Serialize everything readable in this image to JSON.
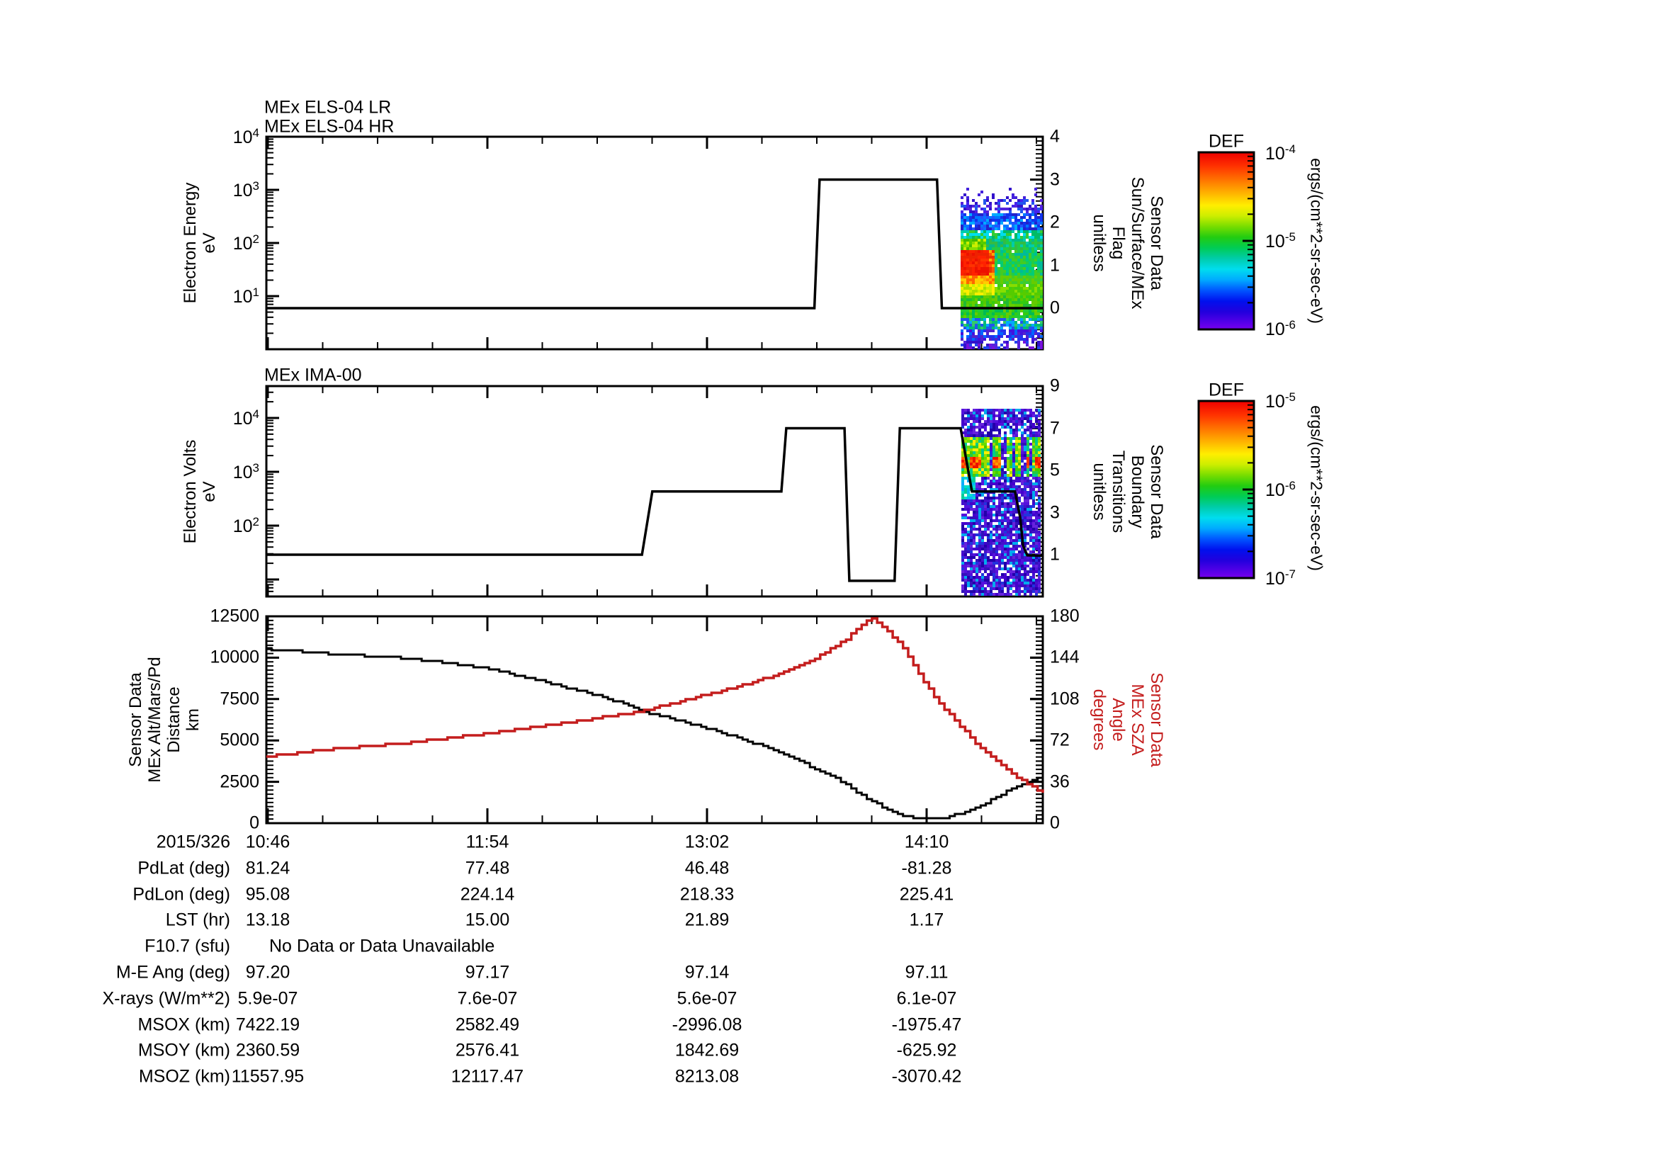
{
  "page": {
    "background": "#ffffff"
  },
  "colors": {
    "axis": "#000000",
    "distance_line": "#000000",
    "sza_line": "#c41d1d"
  },
  "chart_data": [
    {
      "type": "heatmap",
      "titles": [
        "MEx ELS-04 LR",
        "MEx ELS-04 HR"
      ],
      "y_axis": {
        "label_lines": [
          "Electron Energy",
          "eV"
        ],
        "scale": "log",
        "range": [
          1,
          10000
        ],
        "tick_exponents": [
          1,
          2,
          3,
          4
        ]
      },
      "right_axis": {
        "label_lines": [
          "Sensor Data",
          "Sun/Surface/MEx",
          "Flag",
          "unitless"
        ],
        "range": [
          0,
          4
        ],
        "ticks": [
          0,
          1,
          2,
          3,
          4
        ]
      },
      "flag_series": [
        [
          0,
          0
        ],
        [
          169.4,
          0
        ],
        [
          171,
          3
        ],
        [
          207.3,
          3
        ],
        [
          208.8,
          0
        ],
        [
          240,
          0
        ]
      ],
      "spectrogram": {
        "t_start_min": 214.5,
        "t_end_min": 240,
        "seed": 11,
        "x0": 1356,
        "x1": 1472,
        "y0": 265,
        "y1": 491,
        "regions": [
          {
            "y": [
              265,
              279
            ],
            "p": 0.15,
            "colors": [
              "#3311cc",
              "#4422dd"
            ]
          },
          {
            "y": [
              279,
              301
            ],
            "p": 0.5,
            "colors": [
              "#3311cc",
              "#4422ee",
              "#2255ee",
              "#5522dd"
            ]
          },
          {
            "y": [
              301,
              323
            ],
            "p": 0.92,
            "colors": [
              "#1133ee",
              "#2255ff",
              "#0077ff",
              "#2222cc",
              "#00aaff"
            ]
          },
          {
            "y": [
              323,
              334
            ],
            "p": 0.95,
            "colors": [
              "#00ccaa",
              "#00bb66",
              "#33cc33",
              "#00ddee"
            ]
          },
          {
            "y": [
              334,
              337
            ],
            "p": 1.0,
            "colors": [
              "#ffffff",
              "#ffffcc",
              "#eeeeee",
              "#ffffff"
            ]
          },
          {
            "y": [
              337,
              353
            ],
            "xs": [
              [
                1356,
                1392
              ]
            ],
            "p": 1.0,
            "colors": [
              "#55cc00",
              "#88dd00",
              "#ccee00",
              "#44bb00"
            ]
          },
          {
            "y": [
              337,
              353
            ],
            "p": 0.96,
            "colors": [
              "#33bb44",
              "#00bb88",
              "#22cc44",
              "#00ccaa"
            ]
          },
          {
            "y": [
              353,
              387
            ],
            "xs": [
              [
                1356,
                1396
              ]
            ],
            "p": 1.0,
            "colors": [
              "#ee1100",
              "#ff2200",
              "#ee2200",
              "#ff3300"
            ]
          },
          {
            "y": [
              353,
              387
            ],
            "xs": [
              [
                1396,
                1404
              ]
            ],
            "p": 1.0,
            "colors": [
              "#ff5500",
              "#ee3300",
              "#ffaa00"
            ]
          },
          {
            "y": [
              353,
              387
            ],
            "p": 0.97,
            "colors": [
              "#22cc44",
              "#00cc77",
              "#44cc22",
              "#00bb99"
            ]
          },
          {
            "y": [
              387,
              401
            ],
            "xs": [
              [
                1356,
                1404
              ]
            ],
            "p": 1.0,
            "colors": [
              "#ff6600",
              "#ffaa00",
              "#ff8800",
              "#ffcc00"
            ]
          },
          {
            "y": [
              387,
              401
            ],
            "p": 0.97,
            "colors": [
              "#44cc22",
              "#66cc00",
              "#33cc44"
            ]
          },
          {
            "y": [
              401,
              415
            ],
            "xs": [
              [
                1356,
                1404
              ]
            ],
            "p": 1.0,
            "colors": [
              "#ffee00",
              "#ccee00",
              "#aadd00"
            ]
          },
          {
            "y": [
              401,
              415
            ],
            "p": 0.97,
            "colors": [
              "#55cc00",
              "#88dd00",
              "#44cc11"
            ]
          },
          {
            "y": [
              415,
              434
            ],
            "p": 0.97,
            "colors": [
              "#33cc11",
              "#55cc00",
              "#22bb33",
              "#66cc00"
            ]
          },
          {
            "y": [
              436,
              449
            ],
            "p": 0.96,
            "colors": [
              "#33cc11",
              "#00bb55",
              "#66cc00",
              "#22cc33"
            ]
          },
          {
            "y": [
              449,
              463
            ],
            "p": 0.88,
            "colors": [
              "#00bb77",
              "#00aaff",
              "#2255ee",
              "#33cc66"
            ]
          },
          {
            "y": [
              463,
              479
            ],
            "p": 0.72,
            "colors": [
              "#2233ee",
              "#4411dd",
              "#0066ff",
              "#5522cc"
            ]
          },
          {
            "y": [
              479,
              491
            ],
            "p": 0.5,
            "colors": [
              "#3311cc",
              "#5522dd",
              "#2244ee",
              "#7711dd"
            ]
          }
        ]
      }
    },
    {
      "type": "heatmap",
      "titles": [
        "MEx IMA-00"
      ],
      "y_axis": {
        "label_lines": [
          "Electron Volts",
          "eV"
        ],
        "scale": "log",
        "range": [
          5,
          30000
        ],
        "tick_exponents": [
          2,
          3,
          4
        ]
      },
      "right_axis": {
        "label_lines": [
          "Sensor Data",
          "Boundary",
          "Transitions",
          "unitless"
        ],
        "range": [
          0,
          9
        ],
        "ticks": [
          1,
          3,
          5,
          7,
          9
        ]
      },
      "boundary_series": [
        [
          0,
          1
        ],
        [
          116.1,
          1
        ],
        [
          119.3,
          4
        ],
        [
          159.2,
          4
        ],
        [
          160.7,
          7
        ],
        [
          178.7,
          7
        ],
        [
          180.2,
          -0.24
        ],
        [
          194.2,
          -0.24
        ],
        [
          195.8,
          7
        ],
        [
          214.6,
          7
        ],
        [
          218.1,
          4
        ],
        [
          231.4,
          4
        ],
        [
          233.0,
          2.78
        ],
        [
          233.9,
          1.44
        ],
        [
          235.2,
          0.97
        ],
        [
          240,
          0.95
        ]
      ],
      "spectrogram": {
        "t_start_min": 214.6,
        "t_end_min": 239,
        "seed": 29,
        "x0": 1357,
        "x1": 1468,
        "y0": 577,
        "y1": 841,
        "regions": [
          {
            "y": [
              642,
              659
            ],
            "xs": [
              [
                1357,
                1364
              ],
              [
                1369,
                1384
              ],
              [
                1400,
                1411
              ],
              [
                1446,
                1452
              ],
              [
                1459,
                1466
              ]
            ],
            "p": 1.0,
            "colors": [
              "#ff3300",
              "#ee1100",
              "#ff6600",
              "#ff9900"
            ]
          },
          {
            "y": [
              616,
              670
            ],
            "xs": [
              [
                1357,
                1368
              ],
              [
                1369,
                1384
              ],
              [
                1385,
                1394
              ],
              [
                1400,
                1411
              ],
              [
                1419,
                1427
              ],
              [
                1432,
                1441
              ],
              [
                1446,
                1452
              ],
              [
                1457,
                1468
              ]
            ],
            "p": 0.97,
            "colors": [
              "#44cc00",
              "#99dd00",
              "#ffee00",
              "#22cc44",
              "#00cc88",
              "#66dd00"
            ]
          },
          {
            "y": [
              668,
              702
            ],
            "xs": [
              [
                1357,
                1374
              ]
            ],
            "p": 0.85,
            "colors": [
              "#00bbee",
              "#00ddcc",
              "#11aaff",
              "#00cc99"
            ]
          },
          {
            "y": [
              577,
              841
            ],
            "p": 0.85,
            "colors": [
              "#4400cc",
              "#5511dd",
              "#3311bb",
              "#2200aa",
              "#6622dd",
              "#2233dd",
              "#4411cc",
              "#00aaee"
            ]
          }
        ]
      }
    },
    {
      "type": "line",
      "left_axis": {
        "label_lines": [
          "Sensor Data",
          "MEx Alt/Mars/Pd",
          "Distance",
          "km"
        ],
        "range": [
          0,
          12500
        ],
        "ticks": [
          0,
          2500,
          5000,
          7500,
          10000,
          12500
        ]
      },
      "right_axis": {
        "label_lines": [
          "Sensor Data",
          "MEx SZA",
          "Angle",
          "degrees"
        ],
        "range": [
          0,
          180
        ],
        "ticks": [
          0,
          36,
          72,
          108,
          144,
          180
        ],
        "color": "#c41d1d"
      },
      "x_axis": {
        "date_label": "2015/326",
        "major_labels": [
          "10:46",
          "11:54",
          "13:02",
          "14:10"
        ],
        "major_minutes": [
          0,
          68,
          136,
          204
        ],
        "total_minutes": 240
      },
      "series": [
        {
          "name": "MEx Alt/Mars/Pd Distance (km)",
          "color": "#000000",
          "points": [
            [
              0,
              10530
            ],
            [
              22.8,
              10200
            ],
            [
              40.3,
              10000
            ],
            [
              51.2,
              9800
            ],
            [
              67.9,
              9370
            ],
            [
              81.9,
              8730
            ],
            [
              103.8,
              7660
            ],
            [
              116.9,
              6720
            ],
            [
              136.2,
              5740
            ],
            [
              149.8,
              4900
            ],
            [
              162.9,
              3900
            ],
            [
              176,
              2700
            ],
            [
              187,
              1300
            ],
            [
              195.7,
              500
            ],
            [
              202.3,
              250
            ],
            [
              208.9,
              320
            ],
            [
              215.5,
              620
            ],
            [
              219.8,
              985
            ],
            [
              230.8,
              2140
            ],
            [
              240,
              2870
            ]
          ]
        },
        {
          "name": "MEx SZA Angle (degrees)",
          "color": "#c41d1d",
          "points": [
            [
              0,
              58
            ],
            [
              21.9,
              65
            ],
            [
              40.3,
              69
            ],
            [
              67.9,
              78
            ],
            [
              92.8,
              87.5
            ],
            [
              115,
              97
            ],
            [
              136.2,
              112
            ],
            [
              153.1,
              125
            ],
            [
              167.3,
              140
            ],
            [
              178.2,
              158
            ],
            [
              187,
              179.5
            ],
            [
              195.3,
              158
            ],
            [
              206.7,
              108
            ],
            [
              219.8,
              68
            ],
            [
              228.6,
              47
            ],
            [
              235.2,
              34
            ],
            [
              240,
              26
            ]
          ]
        }
      ]
    }
  ],
  "colorbars": [
    {
      "title": "DEF",
      "unit": "ergs/(cm**2-sr-sec-eV)",
      "ticks": [
        {
          "base": "10",
          "exp": "-4"
        },
        {
          "base": "10",
          "exp": "-5"
        },
        {
          "base": "10",
          "exp": "-6"
        }
      ]
    },
    {
      "title": "DEF",
      "unit": "ergs/(cm**2-sr-sec-eV)",
      "ticks": [
        {
          "base": "10",
          "exp": "-5"
        },
        {
          "base": "10",
          "exp": "-6"
        },
        {
          "base": "10",
          "exp": "-7"
        }
      ]
    }
  ],
  "table": {
    "rows": [
      {
        "label": "PdLat (deg)",
        "values": [
          "81.24",
          "77.48",
          "46.48",
          "-81.28"
        ]
      },
      {
        "label": "PdLon (deg)",
        "values": [
          "95.08",
          "224.14",
          "218.33",
          "225.41"
        ]
      },
      {
        "label": "LST (hr)",
        "values": [
          "13.18",
          "15.00",
          "21.89",
          "1.17"
        ]
      },
      {
        "label": "F10.7 (sfu)",
        "span_text": "No Data or Data Unavailable"
      },
      {
        "label": "M-E Ang (deg)",
        "values": [
          "97.20",
          "97.17",
          "97.14",
          "97.11"
        ]
      },
      {
        "label": "X-rays (W/m**2)",
        "values": [
          "5.9e-07",
          "7.6e-07",
          "5.6e-07",
          "6.1e-07"
        ]
      },
      {
        "label": "MSOX (km)",
        "values": [
          "7422.19",
          "2582.49",
          "-2996.08",
          "-1975.47"
        ]
      },
      {
        "label": "MSOY (km)",
        "values": [
          "2360.59",
          "2576.41",
          "1842.69",
          "-625.92"
        ]
      },
      {
        "label": "MSOZ (km)",
        "values": [
          "11557.95",
          "12117.47",
          "8213.08",
          "-3070.42"
        ]
      }
    ]
  }
}
